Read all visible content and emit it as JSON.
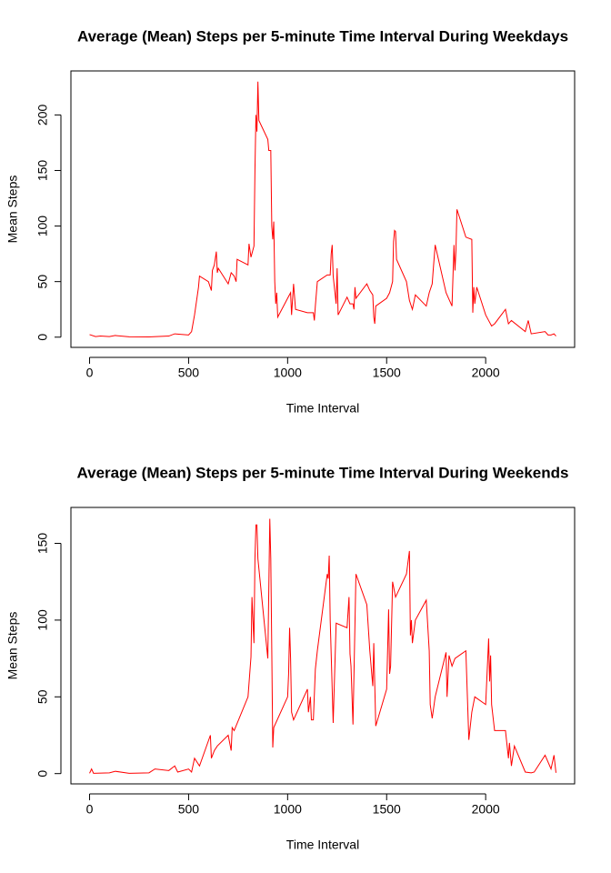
{
  "chart_data": [
    {
      "type": "line",
      "title": "Average (Mean) Steps per 5-minute Time Interval During Weekdays",
      "xlabel": "Time Interval",
      "ylabel": "Mean Steps",
      "xlim": [
        -94.2,
        2449.2
      ],
      "xticks": [
        0,
        500,
        1000,
        1500,
        2000
      ],
      "ylim": [
        -9.2,
        239.6
      ],
      "yticks": [
        0,
        50,
        100,
        150,
        200
      ],
      "x": [
        0,
        30,
        55,
        100,
        130,
        200,
        300,
        400,
        430,
        500,
        515,
        530,
        550,
        555,
        600,
        615,
        620,
        630,
        640,
        645,
        650,
        700,
        715,
        730,
        740,
        745,
        800,
        805,
        815,
        830,
        835,
        840,
        845,
        850,
        855,
        900,
        905,
        915,
        920,
        925,
        930,
        935,
        940,
        945,
        950,
        1000,
        1015,
        1020,
        1030,
        1040,
        1100,
        1130,
        1135,
        1140,
        1150,
        1200,
        1215,
        1220,
        1225,
        1230,
        1245,
        1250,
        1255,
        1300,
        1315,
        1330,
        1335,
        1340,
        1345,
        1400,
        1415,
        1430,
        1435,
        1440,
        1445,
        1500,
        1515,
        1530,
        1535,
        1540,
        1545,
        1550,
        1600,
        1615,
        1630,
        1645,
        1700,
        1715,
        1730,
        1735,
        1745,
        1800,
        1830,
        1835,
        1840,
        1845,
        1850,
        1855,
        1900,
        1930,
        1935,
        1940,
        1945,
        1955,
        2000,
        2015,
        2030,
        2045,
        2100,
        2115,
        2130,
        2200,
        2215,
        2230,
        2300,
        2315,
        2330,
        2345,
        2355
      ],
      "series": [
        {
          "name": "Weekdays",
          "color": "#ff0000",
          "values": [
            2.3,
            0.5,
            1,
            0.5,
            1.5,
            0.3,
            0.2,
            1,
            3,
            2,
            5,
            20,
            45,
            55,
            50,
            42,
            60,
            65,
            77,
            58,
            62,
            48,
            58,
            55,
            50,
            70,
            65,
            84,
            72,
            82,
            150,
            200,
            185,
            230,
            195,
            178,
            168,
            168,
            100,
            88,
            104,
            50,
            30,
            40,
            18,
            35,
            40,
            20,
            48,
            25,
            22,
            22,
            15,
            28,
            50,
            56,
            56,
            75,
            83,
            55,
            30,
            62,
            20,
            36,
            30,
            30,
            25,
            45,
            35,
            48,
            42,
            38,
            18,
            12,
            28,
            35,
            40,
            50,
            86,
            96,
            95,
            70,
            50,
            33,
            25,
            38,
            28,
            40,
            48,
            60,
            83,
            40,
            28,
            55,
            83,
            60,
            78,
            115,
            90,
            88,
            22,
            45,
            30,
            45,
            20,
            15,
            10,
            12,
            25,
            12,
            15,
            5,
            15,
            3,
            5,
            2,
            2,
            3,
            1
          ]
        }
      ]
    },
    {
      "type": "line",
      "title": "Average (Mean) Steps per 5-minute Time Interval During Weekends",
      "xlabel": "Time Interval",
      "ylabel": "Mean Steps",
      "xlim": [
        -94.2,
        2449.2
      ],
      "xticks": [
        0,
        500,
        1000,
        1500,
        2000
      ],
      "ylim": [
        -6.7,
        173.4
      ],
      "yticks": [
        0,
        50,
        100,
        150
      ],
      "x": [
        0,
        10,
        20,
        100,
        130,
        200,
        300,
        330,
        400,
        430,
        445,
        500,
        515,
        530,
        555,
        610,
        615,
        630,
        645,
        700,
        715,
        720,
        730,
        800,
        815,
        820,
        830,
        835,
        840,
        845,
        850,
        900,
        905,
        910,
        915,
        920,
        925,
        930,
        1000,
        1005,
        1010,
        1015,
        1020,
        1030,
        1100,
        1105,
        1115,
        1120,
        1130,
        1140,
        1150,
        1200,
        1205,
        1210,
        1215,
        1230,
        1245,
        1300,
        1310,
        1315,
        1320,
        1330,
        1345,
        1400,
        1415,
        1430,
        1435,
        1445,
        1500,
        1510,
        1515,
        1520,
        1530,
        1545,
        1600,
        1615,
        1620,
        1625,
        1630,
        1645,
        1700,
        1715,
        1720,
        1730,
        1745,
        1800,
        1805,
        1815,
        1830,
        1845,
        1900,
        1915,
        1930,
        1945,
        2000,
        2015,
        2020,
        2025,
        2030,
        2045,
        2100,
        2115,
        2120,
        2130,
        2145,
        2200,
        2230,
        2245,
        2300,
        2330,
        2345,
        2355
      ],
      "series": [
        {
          "name": "Weekends",
          "color": "#ff0000",
          "values": [
            0.2,
            3,
            0.2,
            0.5,
            1.5,
            0.2,
            0.5,
            3,
            2,
            5,
            1,
            3,
            1,
            10,
            5,
            25,
            10,
            15,
            18,
            25,
            15,
            30,
            28,
            50,
            76,
            115,
            85,
            140,
            162,
            162,
            140,
            75,
            120,
            166,
            140,
            80,
            17,
            30,
            50,
            65,
            95,
            75,
            40,
            35,
            55,
            40,
            50,
            35,
            35,
            68,
            80,
            130,
            127,
            142,
            100,
            33,
            98,
            95,
            115,
            78,
            70,
            32,
            130,
            110,
            80,
            57,
            85,
            31,
            55,
            107,
            65,
            70,
            125,
            115,
            130,
            145,
            90,
            100,
            85,
            100,
            113,
            80,
            45,
            36,
            50,
            79,
            50,
            77,
            70,
            75,
            80,
            22,
            40,
            50,
            45,
            88,
            60,
            77,
            45,
            28,
            28,
            10,
            20,
            5,
            18,
            1,
            0.5,
            1,
            12,
            3,
            12,
            0.5
          ]
        }
      ]
    }
  ]
}
